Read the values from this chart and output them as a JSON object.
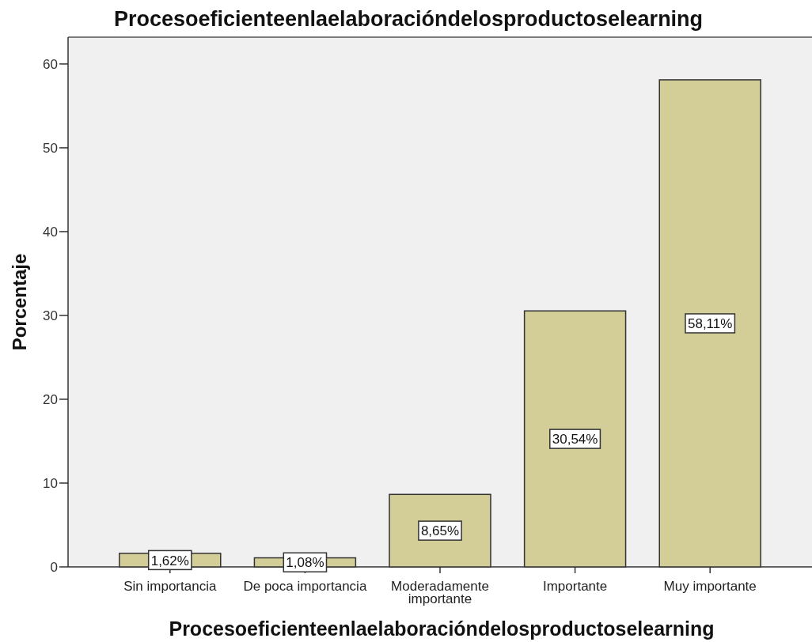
{
  "chart_data": {
    "type": "bar",
    "title": "Procesoeficienteenlaelaboracióndelosproductoselearning",
    "xlabel": "Procesoeficienteenlaelaboracióndelosproductoselearning",
    "ylabel": "Porcentaje",
    "categories": [
      "Sin importancia",
      "De poca importancia",
      "Moderadamente importante",
      "Importante",
      "Muy importante"
    ],
    "values": [
      1.62,
      1.08,
      8.65,
      30.54,
      58.11
    ],
    "value_labels": [
      "1,62%",
      "1,08%",
      "8,65%",
      "30,54%",
      "58,11%"
    ],
    "color": "#d3ce98",
    "ylim": [
      0,
      63.2
    ],
    "yticks": [
      0,
      10,
      20,
      30,
      40,
      50,
      60
    ]
  }
}
